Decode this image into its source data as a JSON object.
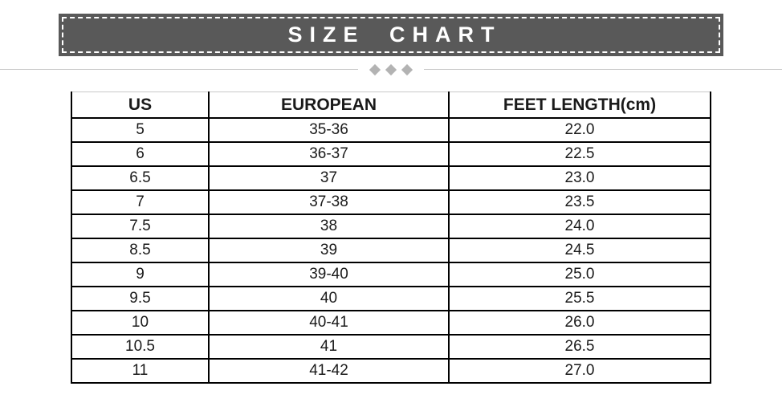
{
  "banner": {
    "title": "SIZE CHART",
    "background_color": "#595959",
    "text_color": "#ffffff",
    "border_style": "white-dashed"
  },
  "divider": {
    "line_color": "#cccccc",
    "diamond_color": "#b3b3b3",
    "diamond_count": 3
  },
  "chart_data": {
    "type": "table",
    "title": "SIZE CHART",
    "columns": [
      "US",
      "EUROPEAN",
      "FEET LENGTH(cm)"
    ],
    "rows": [
      [
        "5",
        "35-36",
        "22.0"
      ],
      [
        "6",
        "36-37",
        "22.5"
      ],
      [
        "6.5",
        "37",
        "23.0"
      ],
      [
        "7",
        "37-38",
        "23.5"
      ],
      [
        "7.5",
        "38",
        "24.0"
      ],
      [
        "8.5",
        "39",
        "24.5"
      ],
      [
        "9",
        "39-40",
        "25.0"
      ],
      [
        "9.5",
        "40",
        "25.5"
      ],
      [
        "10",
        "40-41",
        "26.0"
      ],
      [
        "10.5",
        "41",
        "26.5"
      ],
      [
        "11",
        "41-42",
        "27.0"
      ]
    ],
    "layout": {
      "grid": "full-borders",
      "header_bold": true,
      "text_align": "center"
    }
  }
}
